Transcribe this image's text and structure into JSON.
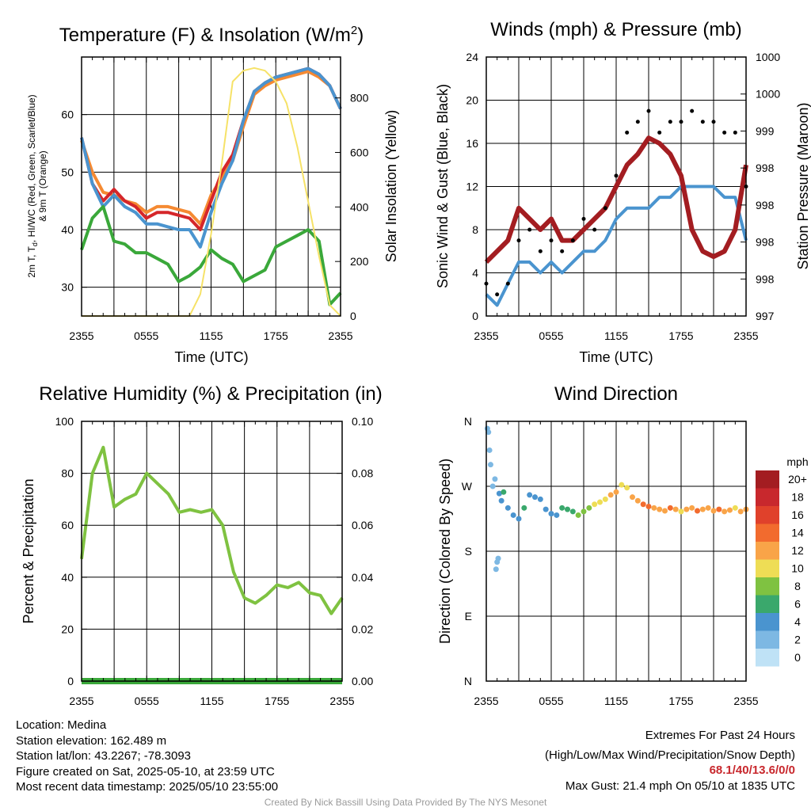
{
  "x_ticks": [
    "2355",
    "0555",
    "1155",
    "1755",
    "2355"
  ],
  "chart_data": [
    {
      "id": "temperature",
      "type": "line",
      "title": "Temperature (F) & Insolation (W/m",
      "title_sup": "2",
      "title_close": ")",
      "xlabel": "Time (UTC)",
      "ylabel_lines": [
        "2m T, T",
        "d",
        ", HI/WC (Red, Green, Scarlet/Blue)",
        "& 9m T (Orange)"
      ],
      "y2label": "Solar Insolation (Yellow)",
      "ylim": [
        25,
        70
      ],
      "y_ticks": [
        30,
        40,
        50,
        60
      ],
      "y2lim": [
        0,
        950
      ],
      "y2_ticks": [
        0,
        200,
        400,
        600,
        800
      ],
      "x": [
        0,
        1,
        2,
        3,
        4,
        5,
        6,
        7,
        8,
        9,
        10,
        11,
        12,
        13,
        14,
        15,
        16,
        17,
        18,
        19,
        20,
        21,
        22,
        23,
        24
      ],
      "series": [
        {
          "color": "#f58a32",
          "axis": "left",
          "values": [
            55.5,
            50,
            46.5,
            46,
            45,
            44.5,
            43,
            44,
            44,
            43.5,
            43,
            41,
            46,
            49,
            52,
            58,
            63.5,
            65,
            66,
            66.5,
            67,
            67.5,
            66.5,
            65,
            61
          ]
        },
        {
          "color": "#d5262a",
          "axis": "left",
          "values": [
            56,
            48,
            45,
            47,
            45,
            44,
            42,
            43,
            43,
            42.5,
            42,
            40,
            45,
            50,
            53,
            59,
            64,
            65.5,
            66.5,
            67,
            67.5,
            68,
            67,
            65,
            61
          ]
        },
        {
          "color": "#4a94cf",
          "axis": "left",
          "values": [
            56,
            48,
            44,
            46,
            44,
            43,
            41,
            41,
            40.5,
            40,
            40,
            37,
            43,
            48,
            52,
            59,
            64,
            65.5,
            66.5,
            67,
            67.5,
            68,
            67,
            65,
            61
          ]
        },
        {
          "color": "#3aa83a",
          "axis": "left",
          "values": [
            36.5,
            42,
            44,
            38,
            37.5,
            36,
            36,
            35,
            34,
            31,
            32,
            33.5,
            36.5,
            35,
            34,
            31,
            32,
            33,
            37,
            38,
            39,
            40,
            38,
            27,
            29
          ]
        },
        {
          "color": "#f6e268",
          "axis": "right",
          "values": [
            0,
            0,
            0,
            0,
            0,
            0,
            0,
            0,
            0,
            0,
            0,
            80,
            300,
            560,
            860,
            900,
            910,
            900,
            860,
            780,
            620,
            420,
            220,
            40,
            0
          ]
        }
      ]
    },
    {
      "id": "winds",
      "type": "line",
      "title": "Winds (mph) & Pressure (mb)",
      "xlabel": "Time (UTC)",
      "ylabel": "Sonic Wind & Gust (Blue, Black)",
      "y2label": "Station Pressure (Maroon)",
      "ylim": [
        0,
        24
      ],
      "y_ticks": [
        0,
        4,
        8,
        12,
        16,
        20,
        24
      ],
      "y2_tick_labels": [
        "997",
        "998",
        "998",
        "998",
        "998",
        "999",
        "1000",
        "1000"
      ],
      "x": [
        0,
        1,
        2,
        3,
        4,
        5,
        6,
        7,
        8,
        9,
        10,
        11,
        12,
        13,
        14,
        15,
        16,
        17,
        18,
        19,
        20,
        21,
        22,
        23,
        24
      ],
      "series": [
        {
          "color": "#4a94cf",
          "values": [
            2,
            1,
            3,
            5,
            5,
            4,
            5,
            4,
            5,
            6,
            6,
            7,
            9,
            10,
            10,
            10,
            11,
            11,
            12,
            12,
            12,
            12,
            11,
            11,
            7
          ]
        },
        {
          "color": "#a31d21",
          "values": [
            5,
            6,
            7,
            10,
            9,
            8,
            9,
            7,
            7,
            8,
            9,
            10,
            12,
            14,
            15,
            16.5,
            16,
            15,
            13,
            8,
            6,
            5.5,
            6,
            8,
            14
          ]
        },
        {
          "color": "#000000",
          "style": "dots",
          "values": [
            3,
            2,
            3,
            7,
            8,
            6,
            7,
            6,
            7,
            9,
            8,
            10,
            13,
            17,
            18,
            19,
            17,
            18,
            18,
            19,
            18,
            18,
            17,
            17,
            12
          ]
        }
      ]
    },
    {
      "id": "humidity",
      "type": "line",
      "title": "Relative Humidity (%) & Precipitation (in)",
      "ylabel": "Percent & Precipitation",
      "ylim": [
        0,
        100
      ],
      "y_ticks": [
        0,
        20,
        40,
        60,
        80,
        100
      ],
      "y2_tick_labels": [
        "0.00",
        "0.02",
        "0.04",
        "0.06",
        "0.08",
        "0.10"
      ],
      "x": [
        0,
        1,
        2,
        3,
        4,
        5,
        6,
        7,
        8,
        9,
        10,
        11,
        12,
        13,
        14,
        15,
        16,
        17,
        18,
        19,
        20,
        21,
        22,
        23,
        24
      ],
      "series": [
        {
          "color": "#7fc241",
          "values": [
            47,
            80,
            90,
            67,
            70,
            72,
            80,
            76,
            72,
            65,
            66,
            65,
            66,
            60,
            42,
            32,
            30,
            33,
            37,
            36,
            38,
            34,
            33,
            26,
            32
          ]
        },
        {
          "color": "#3aa83a",
          "values": [
            0,
            0,
            0,
            0,
            0,
            0,
            0,
            0,
            0,
            0,
            0,
            0,
            0,
            0,
            0,
            0,
            0,
            0,
            0,
            0,
            0,
            0,
            0,
            0,
            0
          ]
        }
      ]
    },
    {
      "id": "direction",
      "type": "scatter",
      "title": "Wind Direction",
      "ylabel": "Direction (Colored By Speed)",
      "y_tick_labels": [
        "N",
        "E",
        "S",
        "W",
        "N"
      ],
      "ylim": [
        0,
        360
      ],
      "legend_title": "mph",
      "legend_labels": [
        "20+",
        "18",
        "16",
        "14",
        "12",
        "10",
        "8",
        "6",
        "4",
        "2",
        "0"
      ],
      "legend_colors": [
        "#a31d21",
        "#c8282d",
        "#e0412b",
        "#f26b2e",
        "#f9a448",
        "#eedd55",
        "#7fc241",
        "#3aa86c",
        "#4a94cf",
        "#7db8e3",
        "#bfe2f6"
      ],
      "points": [
        [
          0.1,
          350,
          1
        ],
        [
          0.2,
          345,
          1
        ],
        [
          0.3,
          320,
          1
        ],
        [
          0.4,
          300,
          1
        ],
        [
          0.6,
          270,
          2
        ],
        [
          0.8,
          280,
          2
        ],
        [
          0.9,
          155,
          1
        ],
        [
          1.0,
          165,
          1
        ],
        [
          1.1,
          170,
          1
        ],
        [
          1.2,
          260,
          3
        ],
        [
          1.4,
          250,
          4
        ],
        [
          1.6,
          262,
          5
        ],
        [
          2.0,
          240,
          4
        ],
        [
          2.5,
          230,
          4
        ],
        [
          3.0,
          225,
          4
        ],
        [
          3.5,
          240,
          5
        ],
        [
          4.0,
          258,
          4
        ],
        [
          4.5,
          255,
          4
        ],
        [
          5.0,
          252,
          3
        ],
        [
          5.5,
          238,
          4
        ],
        [
          6.0,
          232,
          4
        ],
        [
          6.5,
          230,
          4
        ],
        [
          7.0,
          240,
          5
        ],
        [
          7.5,
          238,
          6
        ],
        [
          8.0,
          235,
          6
        ],
        [
          8.5,
          230,
          7
        ],
        [
          9.0,
          235,
          8
        ],
        [
          9.5,
          240,
          8
        ],
        [
          10.0,
          245,
          9
        ],
        [
          10.5,
          248,
          10
        ],
        [
          11.0,
          252,
          10
        ],
        [
          11.5,
          258,
          12
        ],
        [
          12.0,
          262,
          11
        ],
        [
          12.5,
          272,
          10
        ],
        [
          13.0,
          268,
          9
        ],
        [
          13.5,
          255,
          11
        ],
        [
          14.0,
          250,
          12
        ],
        [
          14.5,
          245,
          13
        ],
        [
          15.0,
          242,
          14
        ],
        [
          15.5,
          240,
          12
        ],
        [
          16.0,
          238,
          11
        ],
        [
          16.5,
          236,
          12
        ],
        [
          17.0,
          240,
          13
        ],
        [
          17.5,
          238,
          12
        ],
        [
          18.0,
          235,
          10
        ],
        [
          18.5,
          238,
          11
        ],
        [
          19.0,
          240,
          12
        ],
        [
          19.5,
          236,
          13
        ],
        [
          20.0,
          238,
          12
        ],
        [
          20.5,
          240,
          11
        ],
        [
          21.0,
          236,
          12
        ],
        [
          21.5,
          238,
          13
        ],
        [
          22.0,
          235,
          12
        ],
        [
          22.5,
          237,
          11
        ],
        [
          23.0,
          240,
          10
        ],
        [
          23.5,
          235,
          12
        ],
        [
          24.0,
          238,
          11
        ]
      ]
    }
  ],
  "info": {
    "location": "Location: Medina",
    "elevation": "Station elevation: 162.489 m",
    "latlon": "Station lat/lon: 43.2267; -78.3093",
    "created": "Figure created on Sat, 2025-05-10, at 23:59 UTC",
    "recent": "Most recent data timestamp: 2025/05/10 23:55:00"
  },
  "extremes": {
    "title": "Extremes For Past 24 Hours",
    "subtitle": "(High/Low/Max Wind/Precipitation/Snow Depth)",
    "values": "68.1/40/13.6/0/0",
    "gust": "Max Gust: 21.4 mph On 05/10 at 1835 UTC"
  },
  "credit": "Created By Nick Bassill Using Data Provided By The NYS Mesonet"
}
